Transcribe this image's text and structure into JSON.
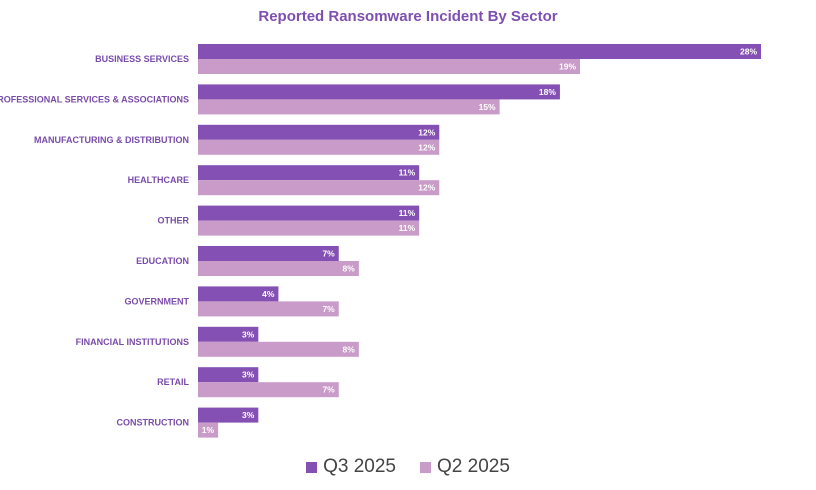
{
  "chart_data": {
    "type": "bar",
    "orientation": "horizontal",
    "title": "Reported Ransomware Incident By Sector",
    "categories": [
      "BUSINESS SERVICES",
      "PROFESSIONAL SERVICES & ASSOCIATIONS",
      "MANUFACTURING & DISTRIBUTION",
      "HEALTHCARE",
      "OTHER",
      "EDUCATION",
      "GOVERNMENT",
      "FINANCIAL INSTITUTIONS",
      "RETAIL",
      "CONSTRUCTION"
    ],
    "series": [
      {
        "name": "Q3 2025",
        "color": "#8550b3",
        "values": [
          28,
          18,
          12,
          11,
          11,
          7,
          4,
          3,
          3,
          3
        ],
        "labels": [
          "28%",
          "18%",
          "12%",
          "11%",
          "11%",
          "7%",
          "4%",
          "3%",
          "3%",
          "3%"
        ]
      },
      {
        "name": "Q2 2025",
        "color": "#c99bc8",
        "values": [
          19,
          15,
          12,
          12,
          11,
          8,
          7,
          8,
          7,
          1
        ],
        "labels": [
          "19%",
          "15%",
          "12%",
          "12%",
          "11%",
          "8%",
          "7%",
          "8%",
          "7%",
          "1%"
        ]
      }
    ],
    "xlim": [
      0,
      28
    ],
    "legend_position": "bottom"
  }
}
